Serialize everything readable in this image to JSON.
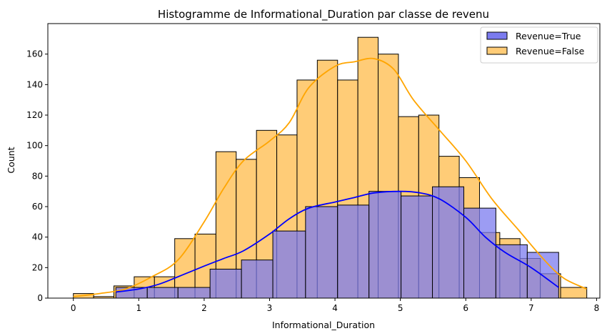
{
  "chart_data": {
    "type": "bar",
    "subtype": "histogram-overlay-with-kde",
    "title": "Histogramme de Informational_Duration par classe de revenu",
    "xlabel": "Informational_Duration",
    "ylabel": "Count",
    "xlim": [
      -0.39,
      8.05
    ],
    "ylim": [
      0,
      180
    ],
    "xticks": [
      0,
      1,
      2,
      3,
      4,
      5,
      6,
      7,
      8
    ],
    "yticks": [
      0,
      20,
      40,
      60,
      80,
      100,
      120,
      140,
      160
    ],
    "grid": false,
    "legend_position": "top-right",
    "series": [
      {
        "name": "Revenue=True",
        "color": "#0000ff",
        "fill_color": "#7b7bef",
        "bin_edges": [
          0.65,
          1.13,
          1.6,
          2.09,
          2.57,
          3.05,
          3.55,
          4.04,
          4.52,
          5.01,
          5.49,
          5.97,
          6.46,
          6.94,
          7.42
        ],
        "counts": [
          7,
          7,
          7,
          19,
          25,
          44,
          60,
          61,
          70,
          67,
          73,
          59,
          35,
          30
        ],
        "kde": {
          "x": [
            0.65,
            1.0,
            1.3,
            1.6,
            2.0,
            2.3,
            2.6,
            3.0,
            3.3,
            3.6,
            4.0,
            4.3,
            4.6,
            5.0,
            5.3,
            5.6,
            6.0,
            6.3,
            6.6,
            7.0,
            7.42
          ],
          "y": [
            4,
            6,
            9,
            14,
            21,
            26,
            31,
            42,
            52,
            59,
            63,
            66,
            69,
            70,
            69,
            65,
            53,
            40,
            30,
            20,
            7
          ]
        }
      },
      {
        "name": "Revenue=False",
        "color": "#ffa500",
        "fill_color": "#ffcc77",
        "bin_edges": [
          0.0,
          0.31,
          0.62,
          0.93,
          1.24,
          1.55,
          1.86,
          2.18,
          2.49,
          2.8,
          3.11,
          3.42,
          3.73,
          4.04,
          4.35,
          4.66,
          4.97,
          5.28,
          5.59,
          5.9,
          6.21,
          6.52,
          6.83,
          7.14,
          7.45,
          7.85
        ],
        "counts": [
          3,
          1,
          8,
          14,
          14,
          39,
          42,
          96,
          91,
          110,
          107,
          143,
          156,
          143,
          171,
          160,
          119,
          120,
          93,
          79,
          43,
          39,
          26,
          16,
          7
        ],
        "kde": {
          "x": [
            0.0,
            0.4,
            0.8,
            1.2,
            1.6,
            2.0,
            2.3,
            2.6,
            3.0,
            3.3,
            3.6,
            4.0,
            4.3,
            4.6,
            4.9,
            5.2,
            5.6,
            6.0,
            6.4,
            6.8,
            7.2,
            7.5,
            7.85
          ],
          "y": [
            1,
            3,
            6,
            14,
            25,
            50,
            72,
            90,
            103,
            115,
            138,
            152,
            155,
            157,
            150,
            130,
            110,
            90,
            65,
            45,
            25,
            13,
            6
          ]
        }
      }
    ]
  }
}
